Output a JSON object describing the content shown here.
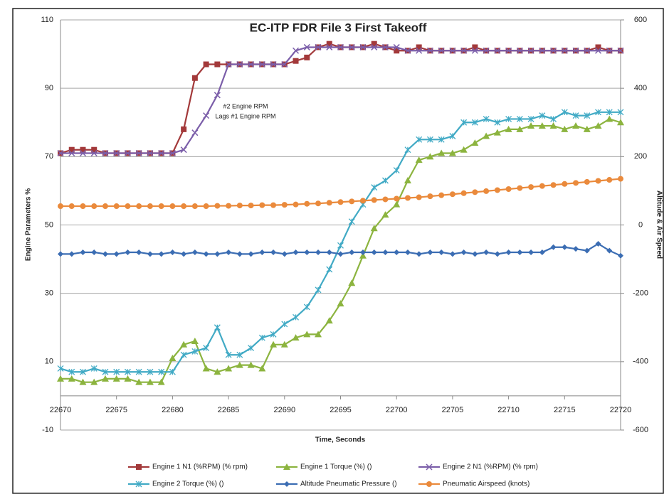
{
  "chart_data": {
    "type": "line",
    "title": "EC-ITP    FDR File 3   First Takeoff",
    "annotation": [
      "#2 Engine RPM",
      "Lags #1 Engine RPM"
    ],
    "xlabel": "Time, Seconds",
    "ylabel": "Engine Parameters %",
    "y2label": "Altitude & Air Speed",
    "x": [
      22670,
      22671,
      22672,
      22673,
      22674,
      22675,
      22676,
      22677,
      22678,
      22679,
      22680,
      22681,
      22682,
      22683,
      22684,
      22685,
      22686,
      22687,
      22688,
      22689,
      22690,
      22691,
      22692,
      22693,
      22694,
      22695,
      22696,
      22697,
      22698,
      22699,
      22700,
      22701,
      22702,
      22703,
      22704,
      22705,
      22706,
      22707,
      22708,
      22709,
      22710,
      22711,
      22712,
      22713,
      22714,
      22715,
      22716,
      22717,
      22718,
      22719,
      22720
    ],
    "xlim": [
      22670,
      22720
    ],
    "xticks": [
      22670,
      22675,
      22680,
      22685,
      22690,
      22695,
      22700,
      22705,
      22710,
      22715,
      22720
    ],
    "ylim": [
      -10,
      110
    ],
    "yticks": [
      -10,
      10,
      30,
      50,
      70,
      90,
      110
    ],
    "y2lim": [
      -600,
      600
    ],
    "y2ticks": [
      -600,
      -400,
      -200,
      0,
      200,
      400,
      600
    ],
    "grid": true,
    "legend": "bottom",
    "series": [
      {
        "name": "Engine 1 N1 (%RPM) (% rpm)",
        "color": "#a3393a",
        "marker": "square",
        "values": [
          71,
          72,
          72,
          72,
          71,
          71,
          71,
          71,
          71,
          71,
          71,
          78,
          93,
          97,
          97,
          97,
          97,
          97,
          97,
          97,
          97,
          98,
          99,
          102,
          103,
          102,
          102,
          102,
          103,
          102,
          101,
          101,
          102,
          101,
          101,
          101,
          101,
          102,
          101,
          101,
          101,
          101,
          101,
          101,
          101,
          101,
          101,
          101,
          102,
          101,
          101
        ]
      },
      {
        "name": "Engine 1  Torque (%) ()",
        "color": "#8cb43f",
        "marker": "triangle",
        "values": [
          5,
          5,
          4,
          4,
          5,
          5,
          5,
          4,
          4,
          4,
          11,
          15,
          16,
          8,
          7,
          8,
          9,
          9,
          8,
          15,
          15,
          17,
          18,
          18,
          22,
          27,
          33,
          41,
          49,
          53,
          56,
          63,
          69,
          70,
          71,
          71,
          72,
          74,
          76,
          77,
          78,
          78,
          79,
          79,
          79,
          78,
          79,
          78,
          79,
          81,
          80
        ]
      },
      {
        "name": "Engine 2 N1 (%RPM) (% rpm)",
        "color": "#7b5ea9",
        "marker": "x",
        "values": [
          71,
          71,
          71,
          71,
          71,
          71,
          71,
          71,
          71,
          71,
          71,
          72,
          77,
          82,
          88,
          97,
          97,
          97,
          97,
          97,
          97,
          101,
          102,
          102,
          102,
          102,
          102,
          102,
          102,
          102,
          102,
          101,
          101,
          101,
          101,
          101,
          101,
          101,
          101,
          101,
          101,
          101,
          101,
          101,
          101,
          101,
          101,
          101,
          101,
          101,
          101
        ]
      },
      {
        "name": "Engine 2  Torque (%) ()",
        "color": "#41aac5",
        "marker": "star",
        "values": [
          8,
          7,
          7,
          8,
          7,
          7,
          7,
          7,
          7,
          7,
          7,
          12,
          13,
          14,
          20,
          12,
          12,
          14,
          17,
          18,
          21,
          23,
          26,
          31,
          37,
          44,
          51,
          56,
          61,
          63,
          66,
          72,
          75,
          75,
          75,
          76,
          80,
          80,
          81,
          80,
          81,
          81,
          81,
          82,
          81,
          83,
          82,
          82,
          83,
          83,
          83
        ]
      },
      {
        "name": "Altitude Pneumatic Pressure ()",
        "color": "#3b6db3",
        "marker": "diamond",
        "axis": "y2",
        "values": [
          -85,
          -85,
          -80,
          -80,
          -85,
          -85,
          -80,
          -80,
          -85,
          -85,
          -80,
          -85,
          -80,
          -85,
          -85,
          -80,
          -85,
          -85,
          -80,
          -80,
          -85,
          -80,
          -80,
          -80,
          -80,
          -85,
          -80,
          -80,
          -80,
          -80,
          -80,
          -80,
          -85,
          -80,
          -80,
          -85,
          -80,
          -85,
          -80,
          -85,
          -80,
          -80,
          -80,
          -80,
          -65,
          -65,
          -70,
          -75,
          -55,
          -75,
          -90
        ]
      },
      {
        "name": "Pneumatic Airspeed (knots)",
        "color": "#ea8a3c",
        "marker": "circle",
        "axis": "y2",
        "values": [
          55,
          55,
          55,
          55,
          55,
          55,
          55,
          55,
          55,
          55,
          55,
          55,
          55,
          55,
          56,
          56,
          57,
          57,
          58,
          58,
          59,
          60,
          62,
          63,
          65,
          67,
          69,
          71,
          73,
          75,
          77,
          79,
          81,
          84,
          87,
          90,
          93,
          96,
          99,
          102,
          105,
          108,
          111,
          114,
          117,
          120,
          123,
          126,
          129,
          132,
          135
        ]
      }
    ]
  }
}
